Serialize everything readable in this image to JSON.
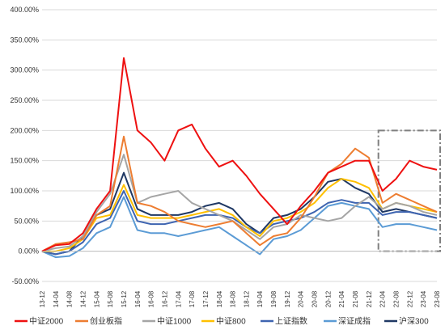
{
  "chart_data": {
    "type": "line",
    "title": "",
    "xlabel": "",
    "ylabel": "",
    "ylim": [
      -50,
      400
    ],
    "y_ticks": [
      "-50.00%",
      "0.00%",
      "50.00%",
      "100.00%",
      "150.00%",
      "200.00%",
      "250.00%",
      "300.00%",
      "350.00%",
      "400.00%"
    ],
    "x_ticks": [
      "13-12",
      "14-04",
      "14-08",
      "14-12",
      "15-04",
      "15-08",
      "15-12",
      "16-04",
      "16-08",
      "16-12",
      "17-04",
      "17-08",
      "17-12",
      "18-04",
      "18-08",
      "18-12",
      "19-04",
      "19-08",
      "19-12",
      "20-04",
      "20-08",
      "20-12",
      "21-04",
      "21-08",
      "21-12",
      "22-04",
      "22-08",
      "22-12",
      "23-04",
      "23-08"
    ],
    "grid": "horizontal",
    "legend_position": "bottom",
    "highlight_box": {
      "from": "22-04",
      "to": "23-08",
      "style": "dash-dot"
    },
    "series": [
      {
        "name": "中证2000",
        "color": "#ee1111",
        "values": [
          0,
          10,
          12,
          30,
          70,
          100,
          320,
          200,
          180,
          150,
          200,
          210,
          170,
          140,
          150,
          125,
          95,
          70,
          45,
          75,
          100,
          130,
          140,
          150,
          150,
          100,
          120,
          150,
          140,
          135
        ]
      },
      {
        "name": "创业板指",
        "color": "#ed7d31",
        "values": [
          0,
          12,
          15,
          20,
          60,
          75,
          190,
          80,
          75,
          65,
          50,
          45,
          40,
          45,
          50,
          30,
          10,
          25,
          30,
          55,
          90,
          130,
          145,
          170,
          155,
          80,
          95,
          85,
          75,
          65
        ]
      },
      {
        "name": "中证1000",
        "color": "#a5a5a5",
        "values": [
          0,
          5,
          8,
          25,
          65,
          95,
          160,
          80,
          90,
          95,
          100,
          80,
          70,
          60,
          50,
          35,
          20,
          40,
          45,
          60,
          55,
          50,
          55,
          75,
          90,
          70,
          80,
          75,
          65,
          60
        ]
      },
      {
        "name": "中证800",
        "color": "#ffc000",
        "values": [
          0,
          0,
          5,
          20,
          55,
          60,
          110,
          60,
          55,
          55,
          55,
          60,
          65,
          70,
          60,
          40,
          25,
          50,
          55,
          65,
          80,
          105,
          120,
          115,
          105,
          70,
          80,
          75,
          70,
          65
        ]
      },
      {
        "name": "上证指数",
        "color": "#3e64b0",
        "values": [
          0,
          -5,
          0,
          15,
          45,
          55,
          100,
          50,
          45,
          45,
          50,
          55,
          60,
          60,
          55,
          40,
          30,
          45,
          50,
          55,
          65,
          80,
          85,
          80,
          80,
          60,
          65,
          65,
          60,
          55
        ]
      },
      {
        "name": "深证成指",
        "color": "#5b9bd5",
        "values": [
          0,
          -10,
          -8,
          5,
          30,
          40,
          90,
          35,
          30,
          30,
          25,
          30,
          35,
          40,
          25,
          10,
          -5,
          20,
          25,
          35,
          55,
          75,
          80,
          75,
          70,
          40,
          45,
          45,
          40,
          35
        ]
      },
      {
        "name": "沪深300",
        "color": "#1f3864",
        "values": [
          0,
          -5,
          0,
          25,
          60,
          70,
          130,
          70,
          60,
          60,
          60,
          65,
          75,
          80,
          70,
          45,
          30,
          55,
          60,
          70,
          90,
          115,
          120,
          105,
          95,
          65,
          70,
          65,
          60,
          55
        ]
      }
    ]
  }
}
